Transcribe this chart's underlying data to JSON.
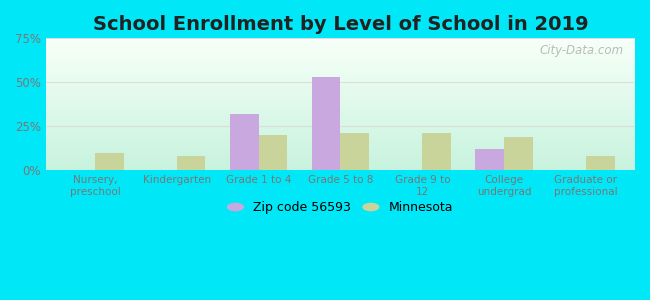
{
  "title": "School Enrollment by Level of School in 2019",
  "categories": [
    "Nursery,\npreschool",
    "Kindergarten",
    "Grade 1 to 4",
    "Grade 5 to 8",
    "Grade 9 to\n12",
    "College\nundergrad",
    "Graduate or\nprofessional"
  ],
  "zipcode_values": [
    0,
    0,
    32,
    53,
    0,
    12,
    0
  ],
  "minnesota_values": [
    10,
    8,
    20,
    21,
    21,
    19,
    8
  ],
  "zipcode_color": "#c9a8e0",
  "minnesota_color": "#c8d49a",
  "bar_width": 0.35,
  "ylim": [
    0,
    75
  ],
  "yticks": [
    0,
    25,
    50,
    75
  ],
  "ytick_labels": [
    "0%",
    "25%",
    "50%",
    "75%"
  ],
  "background_outer": "#00e8f8",
  "title_fontsize": 14,
  "legend_label_zip": "Zip code 56593",
  "legend_label_mn": "Minnesota",
  "watermark": "City-Data.com",
  "tick_color": "#777777",
  "grid_color": "#dddddd"
}
